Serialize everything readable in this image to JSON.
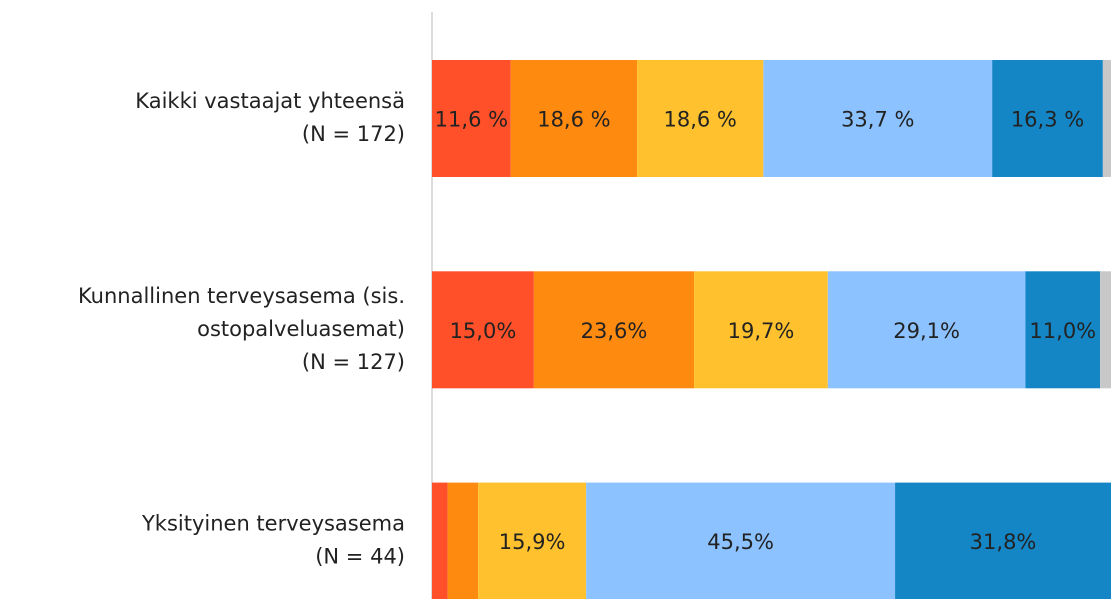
{
  "chart_data": {
    "type": "stacked-bar-horizontal",
    "categories": [
      [
        "Kaikki vastaajat yhteensä",
        "(N = 172)"
      ],
      [
        "Kunnallinen terveysasema (sis.",
        "ostopalveluasemat)",
        "(N = 127)"
      ],
      [
        "Yksityinen terveysasema",
        "(N = 44)"
      ]
    ],
    "series": [
      {
        "color": "#ff5029",
        "values": [
          11.6,
          15.0,
          2.3
        ],
        "value_labels": [
          "11,6 %",
          "15,0%",
          null
        ]
      },
      {
        "color": "#ff8a10",
        "values": [
          18.6,
          23.6,
          4.5
        ],
        "value_labels": [
          "18,6 %",
          "23,6%",
          null
        ]
      },
      {
        "color": "#ffc22e",
        "values": [
          18.6,
          19.7,
          15.9
        ],
        "value_labels": [
          "18,6 %",
          "19,7%",
          "15,9%"
        ]
      },
      {
        "color": "#8bc2ff",
        "values": [
          33.7,
          29.1,
          45.5
        ],
        "value_labels": [
          "33,7 %",
          "29,1%",
          "45,5%"
        ]
      },
      {
        "color": "#1486c6",
        "values": [
          16.3,
          11.0,
          31.8
        ],
        "value_labels": [
          "16,3 %",
          "11,0%",
          "31,8%"
        ]
      },
      {
        "color": "#c8c8c8",
        "values": [
          1.2,
          1.6,
          0
        ],
        "value_labels": [
          null,
          null,
          null
        ]
      }
    ],
    "xlim": [
      0,
      100
    ]
  }
}
